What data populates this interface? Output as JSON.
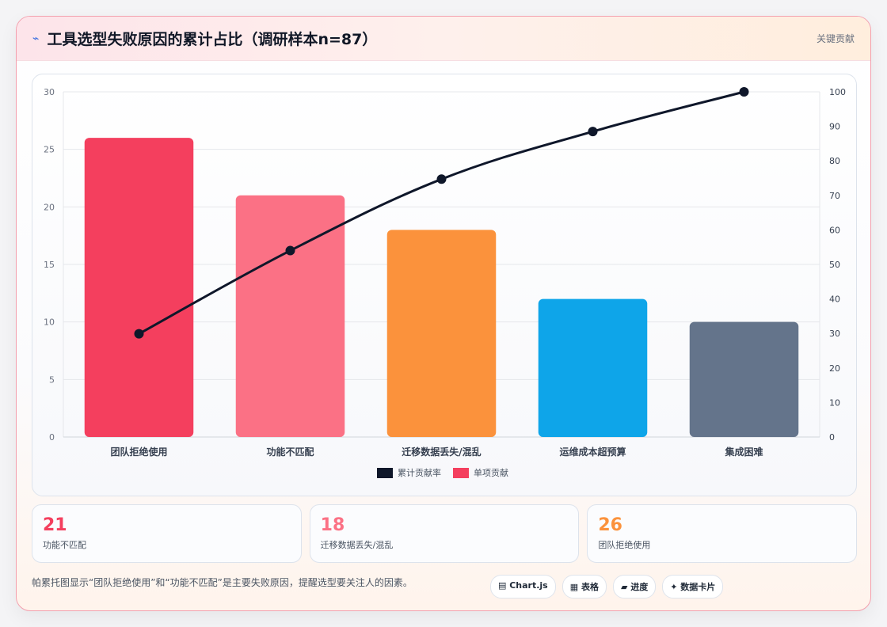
{
  "header": {
    "icon": "bolt-icon",
    "title": "工具选型失败原因的累计占比（调研样本n=87）",
    "tag": "关键贡献"
  },
  "chart_data": {
    "type": "bar",
    "categories": [
      "团队拒绝使用",
      "功能不匹配",
      "迁移数据丢失/混乱",
      "运维成本超预算",
      "集成困难"
    ],
    "series": [
      {
        "name": "单项贡献",
        "type": "bar",
        "values": [
          26,
          21,
          18,
          12,
          10
        ],
        "colors": [
          "#f43f5e",
          "#fb7185",
          "#fb923c",
          "#0ea5e9",
          "#64748b"
        ]
      },
      {
        "name": "累计贡献率",
        "type": "line",
        "values": [
          29.9,
          54.0,
          74.7,
          88.5,
          100.0
        ],
        "color": "#0f172a"
      }
    ],
    "y_left": {
      "min": 0,
      "max": 30,
      "ticks": [
        0,
        5,
        10,
        15,
        20,
        25,
        30
      ]
    },
    "y_right": {
      "min": 0,
      "max": 100,
      "ticks": [
        0,
        10,
        20,
        30,
        40,
        50,
        60,
        70,
        80,
        90,
        100
      ]
    },
    "legend": [
      {
        "name": "累计贡献率",
        "color": "#0f172a"
      },
      {
        "name": "单项贡献",
        "color": "#f43f5e"
      }
    ],
    "legend_position": "bottom",
    "grid": true
  },
  "stats": [
    {
      "value": "21",
      "label": "功能不匹配",
      "color": "#f43f5e"
    },
    {
      "value": "18",
      "label": "迁移数据丢失/混乱",
      "color": "#fb7185"
    },
    {
      "value": "26",
      "label": "团队拒绝使用",
      "color": "#fb923c"
    }
  ],
  "footer": {
    "text": "帕累托图显示“团队拒绝使用”和“功能不匹配”是主要失败原因，提醒选型要关注人的因素。",
    "chips": [
      "▤ Chart.js",
      "▦ 表格",
      "▰ 进度",
      "✦ 数据卡片"
    ]
  }
}
